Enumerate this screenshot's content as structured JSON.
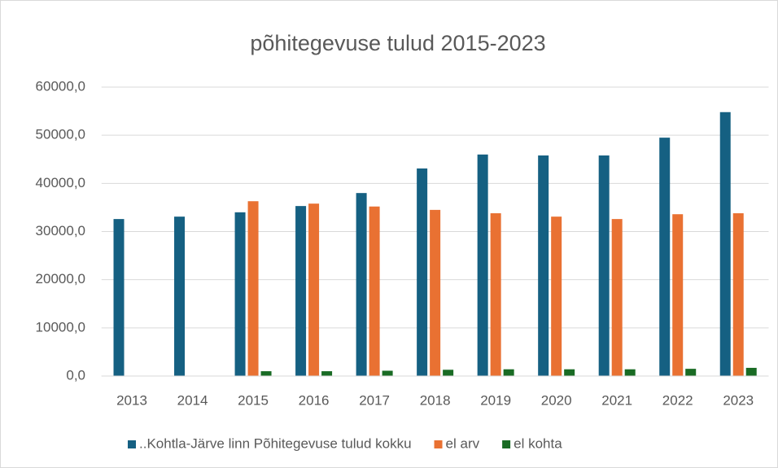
{
  "chart_data": {
    "type": "bar",
    "title": "põhitegevuse tulud 2015-2023",
    "categories": [
      "2013",
      "2014",
      "2015",
      "2016",
      "2017",
      "2018",
      "2019",
      "2020",
      "2021",
      "2022",
      "2023"
    ],
    "series": [
      {
        "name": "..Kohtla-Järve linn Põhitegevuse tulud kokku",
        "color": "#156082",
        "values": [
          32600,
          33100,
          34000,
          35300,
          38000,
          43100,
          46000,
          45800,
          45800,
          49500,
          54800
        ]
      },
      {
        "name": "el arv",
        "color": "#e97132",
        "values": [
          null,
          null,
          36300,
          35800,
          35200,
          34500,
          33800,
          33100,
          32600,
          33600,
          33800
        ]
      },
      {
        "name": "el kohta",
        "color": "#196b24",
        "values": [
          null,
          null,
          1000,
          1000,
          1100,
          1300,
          1400,
          1400,
          1400,
          1500,
          1700
        ]
      }
    ],
    "ylim": [
      0,
      60000
    ],
    "yticks": [
      {
        "value": 0,
        "label": "0,0"
      },
      {
        "value": 10000,
        "label": "10000,0"
      },
      {
        "value": 20000,
        "label": "20000,0"
      },
      {
        "value": 30000,
        "label": "30000,0"
      },
      {
        "value": 40000,
        "label": "40000,0"
      },
      {
        "value": 50000,
        "label": "50000,0"
      },
      {
        "value": 60000,
        "label": "60000,0"
      }
    ],
    "grid": true,
    "legend": "bottom"
  }
}
